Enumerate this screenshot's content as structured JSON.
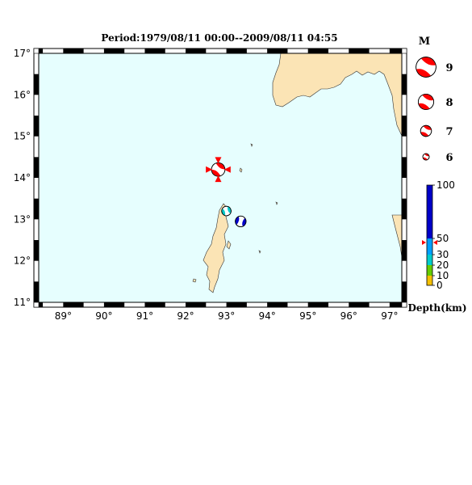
{
  "map": {
    "title": "Period:1979/08/11 00:00--2009/08/11 04:55",
    "lon_range": [
      88.4,
      97.3
    ],
    "lat_range": [
      11,
      17
    ],
    "lon_ticks": [
      {
        "value": 89,
        "label": "89°"
      },
      {
        "value": 90,
        "label": "90°"
      },
      {
        "value": 91,
        "label": "91°"
      },
      {
        "value": 92,
        "label": "92°"
      },
      {
        "value": 93,
        "label": "93°"
      },
      {
        "value": 94,
        "label": "94°"
      },
      {
        "value": 95,
        "label": "95°"
      },
      {
        "value": 96,
        "label": "96°"
      },
      {
        "value": 97,
        "label": "97°"
      }
    ],
    "lat_ticks": [
      {
        "value": 11,
        "label": "11°"
      },
      {
        "value": 12,
        "label": "12°"
      },
      {
        "value": 13,
        "label": "13°"
      },
      {
        "value": 14,
        "label": "14°"
      },
      {
        "value": 15,
        "label": "15°"
      },
      {
        "value": 16,
        "label": "16°"
      },
      {
        "value": 17,
        "label": "17°"
      }
    ],
    "ocean_color": "#e6fefe",
    "land_color": "#fbe4b5",
    "events": [
      {
        "lon": 92.8,
        "lat": 14.2,
        "mag": 7.2,
        "depth_km": 45,
        "color": "#ff0000",
        "has_markers": true
      },
      {
        "lon": 93.0,
        "lat": 13.2,
        "mag": 6.3,
        "depth_km": 30,
        "color": "#00c8c8",
        "has_markers": false
      },
      {
        "lon": 93.35,
        "lat": 12.95,
        "mag": 6.6,
        "depth_km": 60,
        "color": "#0000c8",
        "has_markers": false
      }
    ]
  },
  "legend": {
    "magnitude_title": "M",
    "magnitudes": [
      {
        "label": "9",
        "value": 9
      },
      {
        "label": "8",
        "value": 8
      },
      {
        "label": "7",
        "value": 7
      },
      {
        "label": "6",
        "value": 6
      }
    ],
    "depth_title": "Depth(km)",
    "depth_ticks": [
      {
        "label": "100",
        "value": 100
      },
      {
        "label": "50",
        "value": 50
      },
      {
        "label": "30",
        "value": 30
      },
      {
        "label": "20",
        "value": 20
      },
      {
        "label": "10",
        "value": 10
      },
      {
        "label": "0",
        "value": 0
      }
    ],
    "depth_marker_km": 45,
    "depth_colors": {
      "shallow": "#f5c000",
      "green": "#66cc00",
      "cyan": "#00cccc",
      "lightblue": "#00a0ff",
      "deep": "#0000c8"
    }
  }
}
